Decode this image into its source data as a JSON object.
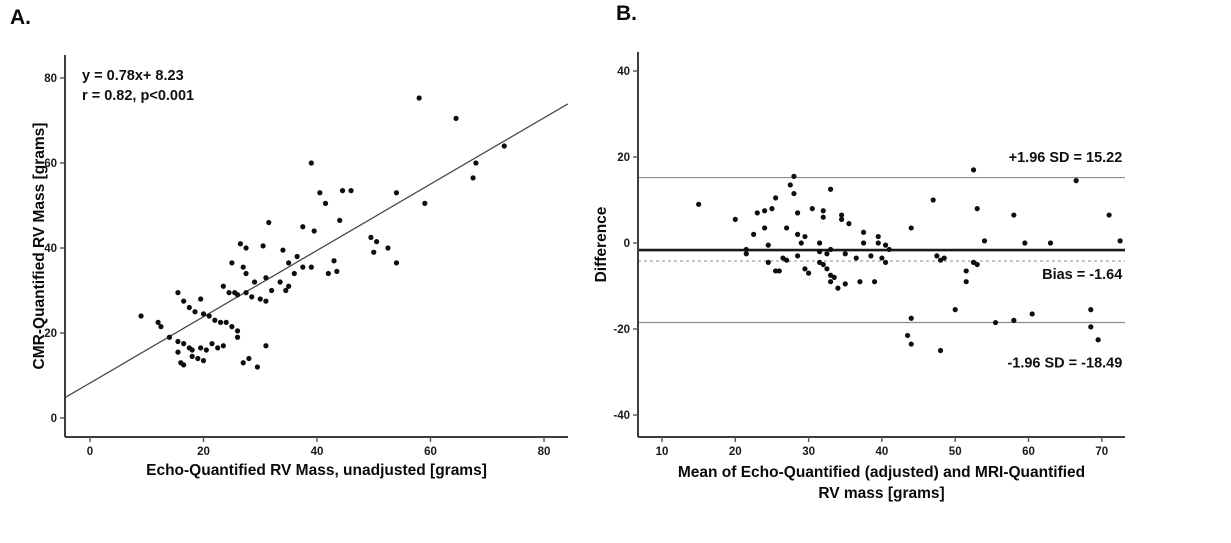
{
  "figure": {
    "background_color": "#ffffff",
    "point_color": "#0e0e0e",
    "axis_color": "#3d3d3d",
    "regression_color": "#4a4a4a"
  },
  "chart_data": [
    {
      "panel_label": "A.",
      "type": "scatter",
      "xlabel": "Echo-Quantified RV Mass, unadjusted [grams]",
      "ylabel": "CMR-Quantified RV Mass [grams]",
      "xticks": [
        0,
        20,
        40,
        60,
        80
      ],
      "yticks": [
        0,
        20,
        40,
        60,
        80
      ],
      "xlim": [
        -4.4,
        84.2
      ],
      "ylim": [
        -4.5,
        85.4
      ],
      "grid": false,
      "regression": {
        "slope": 0.78,
        "intercept": 8.23,
        "equation": "y = 0.78x+ 8.23",
        "fit_note": "r = 0.82, p<0.001"
      },
      "annotations": [
        {
          "text": "y = 0.78x+ 8.23",
          "x": -1.4,
          "y": 79.5,
          "anchor": "start"
        },
        {
          "text": "r = 0.82, p<0.001",
          "x": -1.4,
          "y": 74.8,
          "anchor": "start"
        }
      ],
      "points": [
        [
          58,
          75.3
        ],
        [
          64.5,
          70.5
        ],
        [
          73,
          64
        ],
        [
          68,
          60
        ],
        [
          67.5,
          56.5
        ],
        [
          39,
          60
        ],
        [
          40.5,
          53
        ],
        [
          44.5,
          53.5
        ],
        [
          46,
          53.5
        ],
        [
          41.5,
          50.5
        ],
        [
          54,
          53
        ],
        [
          59,
          50.5
        ],
        [
          44,
          46.5
        ],
        [
          37.5,
          45
        ],
        [
          31.5,
          46
        ],
        [
          39.5,
          44
        ],
        [
          49.5,
          42.5
        ],
        [
          50.5,
          41.5
        ],
        [
          52.5,
          40
        ],
        [
          50,
          39
        ],
        [
          54,
          36.5
        ],
        [
          26.5,
          41
        ],
        [
          27.5,
          40
        ],
        [
          30.5,
          40.5
        ],
        [
          34,
          39.5
        ],
        [
          36.5,
          38
        ],
        [
          37.5,
          35.5
        ],
        [
          39,
          35.5
        ],
        [
          42,
          34
        ],
        [
          43.5,
          34.5
        ],
        [
          43,
          37
        ],
        [
          25,
          36.5
        ],
        [
          27,
          35.5
        ],
        [
          27.5,
          34
        ],
        [
          29,
          32
        ],
        [
          31,
          33
        ],
        [
          32,
          30
        ],
        [
          33.5,
          32
        ],
        [
          34.5,
          30
        ],
        [
          35,
          31
        ],
        [
          23.5,
          31
        ],
        [
          24.5,
          29.5
        ],
        [
          25.5,
          29.5
        ],
        [
          26,
          29
        ],
        [
          27.5,
          29.5
        ],
        [
          28.5,
          28.5
        ],
        [
          30,
          28
        ],
        [
          31,
          27.5
        ],
        [
          19.5,
          28
        ],
        [
          15.5,
          29.5
        ],
        [
          16.5,
          27.5
        ],
        [
          17.5,
          26
        ],
        [
          18.5,
          25
        ],
        [
          20,
          24.5
        ],
        [
          21,
          24
        ],
        [
          22,
          23
        ],
        [
          23,
          22.5
        ],
        [
          24,
          22.5
        ],
        [
          25,
          21.5
        ],
        [
          26,
          20.5
        ],
        [
          9,
          24
        ],
        [
          12,
          22.5
        ],
        [
          12.5,
          21.5
        ],
        [
          14,
          19
        ],
        [
          15.5,
          18
        ],
        [
          16.5,
          17.5
        ],
        [
          17.5,
          16.5
        ],
        [
          18,
          16
        ],
        [
          19.5,
          16.5
        ],
        [
          20.5,
          16
        ],
        [
          21.5,
          17.5
        ],
        [
          22.5,
          16.5
        ],
        [
          23.5,
          17
        ],
        [
          15.5,
          15.5
        ],
        [
          18,
          14.5
        ],
        [
          19,
          14
        ],
        [
          20,
          13.5
        ],
        [
          16,
          13
        ],
        [
          16.5,
          12.5
        ],
        [
          28,
          14
        ],
        [
          27,
          13
        ],
        [
          29.5,
          12
        ],
        [
          31,
          17
        ],
        [
          26,
          19
        ],
        [
          35,
          36.5
        ],
        [
          36,
          34
        ]
      ]
    },
    {
      "panel_label": "B.",
      "type": "scatter",
      "xlabel_lines": [
        "Mean of Echo-Quantified (adjusted) and MRI-Quantified",
        "RV mass [grams]"
      ],
      "ylabel": "Difference",
      "xticks": [
        10,
        20,
        30,
        40,
        50,
        60,
        70
      ],
      "yticks": [
        40,
        20,
        0,
        -20,
        -40
      ],
      "xlim": [
        6.7,
        73.2
      ],
      "ylim": [
        -45.1,
        44.4
      ],
      "grid": false,
      "reference_lines": [
        {
          "label": "+1.96 SD = 15.22",
          "value": 15.22,
          "style": "solid",
          "color": "#8c8c8c",
          "width": 1.2
        },
        {
          "label": "Bias = -1.64",
          "value": -1.64,
          "style": "solid",
          "color": "#1a1a1a",
          "width": 2.6
        },
        {
          "label": "",
          "value": -4.2,
          "style": "dashed",
          "color": "#9a9a9a",
          "width": 1.2
        },
        {
          "label": "-1.96 SD = -18.49",
          "value": -18.49,
          "style": "solid",
          "color": "#8c8c8c",
          "width": 1.2
        }
      ],
      "annotations": [
        {
          "text": "+1.96 SD = 15.22",
          "x": 72.8,
          "y": 18.8,
          "anchor": "end"
        },
        {
          "text": "Bias = -1.64",
          "x": 72.8,
          "y": -8.4,
          "anchor": "end"
        },
        {
          "text": "-1.96 SD = -18.49",
          "x": 72.8,
          "y": -29,
          "anchor": "end"
        }
      ],
      "points": [
        [
          15,
          9
        ],
        [
          20,
          5.5
        ],
        [
          21.5,
          -1.5
        ],
        [
          21.5,
          -2.5
        ],
        [
          22.5,
          2
        ],
        [
          23,
          7
        ],
        [
          24,
          7.5
        ],
        [
          24,
          3.5
        ],
        [
          24.5,
          -0.5
        ],
        [
          24.5,
          -4.5
        ],
        [
          25,
          8
        ],
        [
          25.5,
          -6.5
        ],
        [
          25.5,
          10.5
        ],
        [
          26,
          -6.5
        ],
        [
          26.5,
          -3.5
        ],
        [
          27,
          -4
        ],
        [
          27,
          3.5
        ],
        [
          27.5,
          13.5
        ],
        [
          28,
          15.5
        ],
        [
          28,
          11.5
        ],
        [
          28.5,
          7
        ],
        [
          28.5,
          2
        ],
        [
          28.5,
          -3
        ],
        [
          29,
          0
        ],
        [
          29.5,
          1.5
        ],
        [
          29.5,
          -6
        ],
        [
          30,
          -7
        ],
        [
          30.5,
          8
        ],
        [
          31.5,
          -2
        ],
        [
          31.5,
          0
        ],
        [
          31.5,
          -4.5
        ],
        [
          32,
          -5
        ],
        [
          32,
          7.5
        ],
        [
          32,
          6
        ],
        [
          32.5,
          -2.5
        ],
        [
          32.5,
          -6
        ],
        [
          33,
          -7.5
        ],
        [
          33,
          12.5
        ],
        [
          33,
          -9
        ],
        [
          33,
          -1.5
        ],
        [
          33.5,
          -8
        ],
        [
          34,
          -10.5
        ],
        [
          34.5,
          6.5
        ],
        [
          34.5,
          5.5
        ],
        [
          35,
          -2.5
        ],
        [
          35,
          -9.5
        ],
        [
          35.5,
          4.5
        ],
        [
          36.5,
          -3.5
        ],
        [
          37,
          -9
        ],
        [
          37.5,
          2.5
        ],
        [
          37.5,
          0
        ],
        [
          38.5,
          -3
        ],
        [
          39,
          -9
        ],
        [
          39.5,
          0
        ],
        [
          39.5,
          1.5
        ],
        [
          40,
          -3.5
        ],
        [
          40.5,
          -4.5
        ],
        [
          40.5,
          -0.5
        ],
        [
          41,
          -1.5
        ],
        [
          44,
          3.5
        ],
        [
          44,
          -17.5
        ],
        [
          43.5,
          -21.5
        ],
        [
          44,
          -23.5
        ],
        [
          47,
          10
        ],
        [
          47.5,
          -3
        ],
        [
          48,
          -25
        ],
        [
          48,
          -4
        ],
        [
          48.5,
          -3.5
        ],
        [
          50,
          -15.5
        ],
        [
          52.5,
          17
        ],
        [
          53,
          8
        ],
        [
          52.5,
          -4.5
        ],
        [
          53,
          -5
        ],
        [
          51.5,
          -6.5
        ],
        [
          51.5,
          -9
        ],
        [
          54,
          0.5
        ],
        [
          55.5,
          -18.5
        ],
        [
          58,
          -18
        ],
        [
          58,
          6.5
        ],
        [
          59.5,
          0
        ],
        [
          60.5,
          -16.5
        ],
        [
          63,
          0
        ],
        [
          66.5,
          14.5
        ],
        [
          68.5,
          -15.5
        ],
        [
          68.5,
          -19.5
        ],
        [
          69.5,
          -22.5
        ],
        [
          71,
          6.5
        ],
        [
          72.5,
          0.5
        ]
      ]
    }
  ]
}
